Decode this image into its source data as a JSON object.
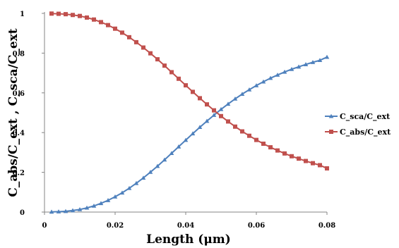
{
  "chart_data": {
    "type": "line",
    "title": "",
    "xlabel": "Length (μm)",
    "ylabel": "C_abs/C_ext , C_sca/C_ext",
    "xlim": [
      0,
      0.08
    ],
    "ylim": [
      0,
      1
    ],
    "x_ticks": [
      "0",
      "0.02",
      "0.04",
      "0.06",
      "0.08"
    ],
    "y_ticks": [
      "0",
      "0.2",
      "0.4",
      "0.6",
      "0.8",
      "1"
    ],
    "grid": false,
    "legend_position": "right",
    "x": [
      0.002,
      0.004,
      0.006,
      0.008,
      0.01,
      0.012,
      0.014,
      0.016,
      0.018,
      0.02,
      0.022,
      0.024,
      0.026,
      0.028,
      0.03,
      0.032,
      0.034,
      0.036,
      0.038,
      0.04,
      0.042,
      0.044,
      0.046,
      0.048,
      0.05,
      0.052,
      0.054,
      0.056,
      0.058,
      0.06,
      0.062,
      0.064,
      0.066,
      0.068,
      0.07,
      0.072,
      0.074,
      0.076,
      0.078,
      0.08
    ],
    "series": [
      {
        "name": "C_sca/C_ext",
        "color": "#4F81BD",
        "marker": "triangle",
        "values": [
          0.001,
          0.002,
          0.004,
          0.008,
          0.013,
          0.021,
          0.031,
          0.044,
          0.059,
          0.077,
          0.097,
          0.12,
          0.145,
          0.172,
          0.201,
          0.231,
          0.263,
          0.296,
          0.329,
          0.362,
          0.395,
          0.427,
          0.458,
          0.488,
          0.517,
          0.544,
          0.57,
          0.594,
          0.616,
          0.637,
          0.656,
          0.674,
          0.69,
          0.705,
          0.719,
          0.731,
          0.743,
          0.754,
          0.764,
          0.78
        ]
      },
      {
        "name": "C_abs/C_ext",
        "color": "#C0504D",
        "marker": "square",
        "values": [
          0.999,
          0.998,
          0.996,
          0.992,
          0.987,
          0.979,
          0.969,
          0.956,
          0.941,
          0.923,
          0.903,
          0.88,
          0.855,
          0.828,
          0.799,
          0.769,
          0.737,
          0.704,
          0.671,
          0.638,
          0.605,
          0.573,
          0.542,
          0.512,
          0.483,
          0.456,
          0.43,
          0.406,
          0.384,
          0.363,
          0.344,
          0.326,
          0.31,
          0.295,
          0.281,
          0.269,
          0.257,
          0.246,
          0.236,
          0.22
        ]
      }
    ]
  }
}
